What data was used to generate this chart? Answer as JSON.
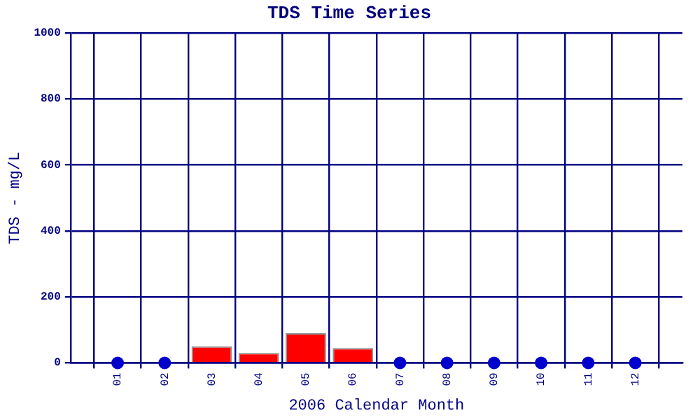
{
  "chart_data": {
    "type": "bar",
    "title": "TDS Time Series",
    "xlabel": "2006 Calendar Month",
    "ylabel": "TDS - mg/L",
    "categories": [
      null,
      "01",
      "02",
      "03",
      "04",
      "05",
      "06",
      "07",
      "08",
      "09",
      "10",
      "11",
      "12",
      null
    ],
    "series": [
      {
        "color": "#ff0000",
        "values": [
          null,
          null,
          null,
          50,
          30,
          90,
          45,
          null,
          null,
          null,
          null,
          null,
          null,
          null
        ]
      },
      {
        "type": "scatter",
        "color": "#0000cc",
        "x": [
          "01",
          "02",
          "07",
          "08",
          "09",
          "10",
          "11",
          "12"
        ],
        "values": [
          0,
          0,
          0,
          0,
          0,
          0,
          0,
          0
        ]
      }
    ],
    "ylim": [
      0,
      1000
    ],
    "yticks": [
      0,
      200,
      400,
      600,
      800,
      1000
    ],
    "grid": true,
    "legend": false,
    "marker": "circle"
  }
}
